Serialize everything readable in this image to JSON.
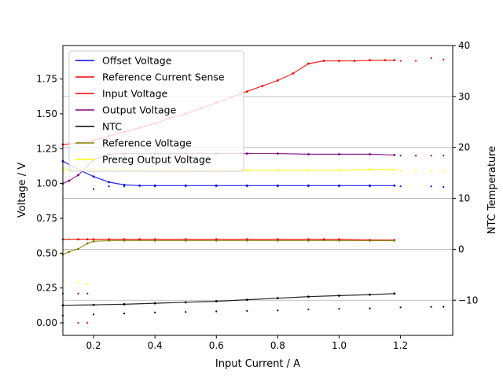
{
  "chart_data": {
    "type": "scatter",
    "xlabel": "Input Current / A",
    "ylabel": "Voltage / V",
    "y2label": "NTC Temperature",
    "xlim": [
      0.1,
      1.37
    ],
    "ylim": [
      -0.09,
      1.99
    ],
    "y2lim": [
      -16.9,
      40.0
    ],
    "x_ticks": [
      0.2,
      0.4,
      0.6,
      0.8,
      1.0,
      1.2
    ],
    "x_tick_labels": [
      "0.2",
      "0.4",
      "0.6",
      "0.8",
      "1.0",
      "1.2"
    ],
    "y_ticks": [
      0.0,
      0.25,
      0.5,
      0.75,
      1.0,
      1.25,
      1.5,
      1.75
    ],
    "y_tick_labels": [
      "0.00",
      "0.25",
      "0.50",
      "0.75",
      "1.00",
      "1.25",
      "1.50",
      "1.75"
    ],
    "y2_ticks": [
      -10,
      0,
      10,
      20,
      30,
      40
    ],
    "y2_tick_labels": [
      "−10",
      "0",
      "10",
      "20",
      "30",
      "40"
    ],
    "grid": "right-axis horizontal",
    "legend_position": "top-left",
    "series": [
      {
        "name": "Offset Voltage",
        "color": "#0000ff",
        "axis": "left",
        "x": [
          0.1,
          0.15,
          0.2,
          0.25,
          0.3,
          0.35,
          0.4,
          0.5,
          0.6,
          0.7,
          0.8,
          0.9,
          1.0,
          1.1,
          1.18
        ],
        "y": [
          1.16,
          1.1,
          1.05,
          1.01,
          0.99,
          0.985,
          0.985,
          0.985,
          0.985,
          0.985,
          0.985,
          0.985,
          0.985,
          0.985,
          0.985
        ],
        "x_extra": [
          0.2,
          0.25,
          0.3,
          0.4,
          0.5,
          0.6,
          0.7,
          0.8,
          0.9,
          1.0,
          1.1,
          1.2,
          1.3,
          1.34
        ],
        "y_extra": [
          0.96,
          0.98,
          0.98,
          0.98,
          0.98,
          0.98,
          0.98,
          0.98,
          0.98,
          0.98,
          0.98,
          0.98,
          0.98,
          0.975
        ]
      },
      {
        "name": "Reference Current Sense",
        "color": "#ff0000",
        "axis": "left",
        "x": [
          0.1,
          0.15,
          0.18,
          0.2,
          0.25,
          0.3,
          0.35,
          0.4,
          0.5,
          0.6,
          0.7,
          0.8,
          0.9,
          0.95,
          1.0,
          1.1,
          1.18
        ],
        "y": [
          0.6,
          0.6,
          0.6,
          0.6,
          0.6,
          0.6,
          0.6,
          0.6,
          0.6,
          0.6,
          0.6,
          0.6,
          0.6,
          0.6,
          0.6,
          0.595,
          0.595
        ],
        "x_extra": [
          0.1,
          0.15,
          0.18
        ],
        "y_extra": [
          0.0,
          0.0,
          0.0
        ]
      },
      {
        "name": "Input Voltage",
        "color": "#ff0000",
        "axis": "left",
        "x": [
          0.1,
          0.15,
          0.2,
          0.25,
          0.3,
          0.35,
          0.4,
          0.45,
          0.5,
          0.55,
          0.6,
          0.65,
          0.7,
          0.75,
          0.8,
          0.85,
          0.9,
          0.95,
          1.0,
          1.05,
          1.1,
          1.15,
          1.18
        ],
        "y": [
          1.28,
          1.29,
          1.31,
          1.34,
          1.37,
          1.4,
          1.43,
          1.47,
          1.5,
          1.54,
          1.58,
          1.62,
          1.66,
          1.7,
          1.74,
          1.79,
          1.86,
          1.88,
          1.88,
          1.88,
          1.885,
          1.885,
          1.885
        ],
        "x_extra": [
          1.2,
          1.25,
          1.3,
          1.34
        ],
        "y_extra": [
          1.88,
          1.88,
          1.9,
          1.89
        ]
      },
      {
        "name": "Output Voltage",
        "color": "#800080",
        "axis": "left",
        "x": [
          0.1,
          0.12,
          0.15,
          0.2,
          0.25,
          0.3,
          0.4,
          0.5,
          0.6,
          0.7,
          0.8,
          0.9,
          1.0,
          1.1,
          1.18
        ],
        "y": [
          1.0,
          1.02,
          1.06,
          1.17,
          1.21,
          1.215,
          1.215,
          1.215,
          1.215,
          1.215,
          1.215,
          1.21,
          1.21,
          1.21,
          1.205
        ],
        "x_extra": [
          0.1,
          0.15,
          0.18,
          1.2,
          1.25,
          1.3,
          1.34
        ],
        "y_extra": [
          0.21,
          0.21,
          0.21,
          1.2,
          1.2,
          1.2,
          1.2
        ]
      },
      {
        "name": "NTC",
        "color": "#000000",
        "axis": "right",
        "x": [
          0.1,
          0.2,
          0.3,
          0.4,
          0.5,
          0.6,
          0.7,
          0.8,
          0.9,
          1.0,
          1.1,
          1.18
        ],
        "y": [
          -11.0,
          -10.9,
          -10.8,
          -10.6,
          -10.4,
          -10.2,
          -9.9,
          -9.6,
          -9.3,
          -9.1,
          -8.9,
          -8.7
        ],
        "x_extra": [
          0.1,
          0.2,
          0.3,
          0.4,
          0.5,
          0.6,
          0.7,
          0.8,
          0.9,
          1.0,
          1.1,
          1.2,
          1.3,
          1.34
        ],
        "y_extra": [
          -13.0,
          -12.8,
          -12.6,
          -12.4,
          -12.3,
          -12.2,
          -12.1,
          -12.0,
          -11.8,
          -11.7,
          -11.6,
          -11.4,
          -11.3,
          -11.3
        ]
      },
      {
        "name": "Reference Voltage",
        "color": "#808000",
        "axis": "left",
        "x": [
          0.1,
          0.12,
          0.15,
          0.18,
          0.2,
          0.25,
          0.3,
          0.4,
          0.5,
          0.6,
          0.7,
          0.8,
          0.9,
          1.0,
          1.1,
          1.18
        ],
        "y": [
          0.49,
          0.51,
          0.53,
          0.57,
          0.585,
          0.59,
          0.59,
          0.59,
          0.59,
          0.59,
          0.59,
          0.59,
          0.59,
          0.59,
          0.59,
          0.59
        ],
        "x_extra": [
          0.1,
          0.12
        ],
        "y_extra": [
          0.6,
          0.6
        ]
      },
      {
        "name": "Prereg Output Voltage",
        "color": "#ffff00",
        "axis": "left",
        "x": [
          0.1,
          0.15,
          0.2,
          0.25,
          0.3,
          0.4,
          0.5,
          0.6,
          0.7,
          0.8,
          0.9,
          1.0,
          1.1,
          1.18
        ],
        "y": [
          1.1,
          1.1,
          1.1,
          1.1,
          1.1,
          1.1,
          1.095,
          1.095,
          1.095,
          1.095,
          1.095,
          1.095,
          1.1,
          1.1
        ],
        "x_extra": [
          0.1,
          0.15,
          0.18,
          1.2,
          1.25,
          1.3,
          1.34
        ],
        "y_extra": [
          0.31,
          0.29,
          0.28,
          1.09,
          1.09,
          1.09,
          1.09
        ]
      }
    ]
  }
}
